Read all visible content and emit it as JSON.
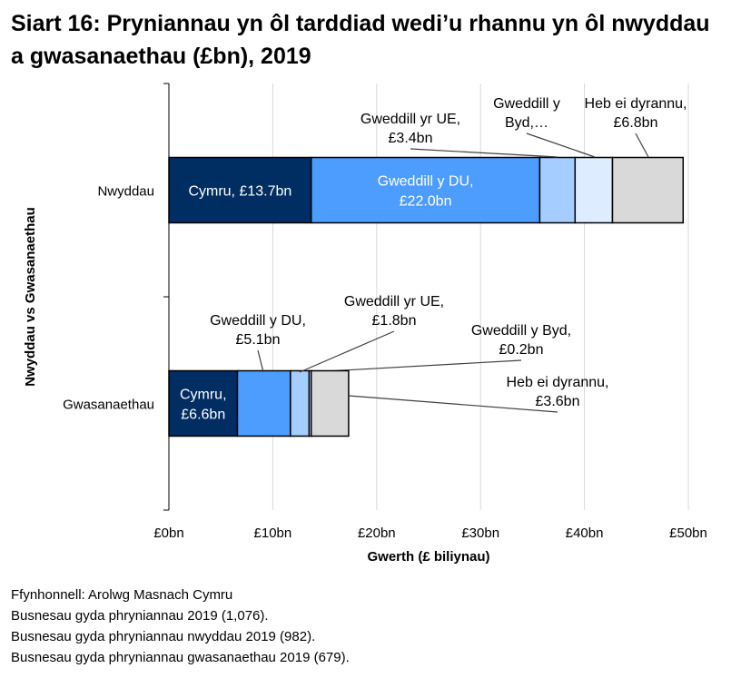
{
  "chart_data": {
    "type": "bar",
    "orientation": "horizontal",
    "stacked": true,
    "title": "Siart 16: Pryniannau yn ôl tarddiad wedi’u rhannu yn ôl nwyddau a gwasanaethau (£bn), 2019",
    "xlabel": "Gwerth (£ biliynau)",
    "ylabel": "Nwyddau vs Gwasanaethau",
    "xlim": [
      0,
      50
    ],
    "xticks": [
      "£0bn",
      "£10bn",
      "£20bn",
      "£30bn",
      "£40bn",
      "£50bn"
    ],
    "xtick_values": [
      0,
      10,
      20,
      30,
      40,
      50
    ],
    "grid": "vertical",
    "categories": [
      "Nwyddau",
      "Gwasanaethau"
    ],
    "series": [
      {
        "name": "Cymru",
        "color": "#002d62",
        "values": [
          13.7,
          6.6
        ]
      },
      {
        "name": "Gweddill y DU",
        "color": "#4d9cff",
        "values": [
          22.0,
          5.1
        ]
      },
      {
        "name": "Gweddill yr UE",
        "color": "#a6cdff",
        "values": [
          3.4,
          1.8
        ]
      },
      {
        "name": "Gweddill y Byd",
        "color": "#ddecff",
        "values": [
          3.6,
          0.2
        ]
      },
      {
        "name": "Heb ei dyrannu",
        "color": "#d9d9d9",
        "values": [
          6.8,
          3.6
        ]
      }
    ],
    "labels": {
      "Nwyddau": [
        "Cymru, £13.7bn",
        "Gweddill y DU, £22.0bn",
        "Gweddill yr UE, £3.4bn",
        "Gweddill y Byd,…",
        "Heb ei dyrannu, £6.8bn"
      ],
      "Gwasanaethau": [
        "Cymru, £6.6bn",
        "Gweddill y DU, £5.1bn",
        "Gweddill yr UE, £1.8bn",
        "Gweddill y Byd, £0.2bn",
        "Heb ei dyrannu, £3.6bn"
      ]
    }
  },
  "notes": [
    "Ffynhonnell: Arolwg Masnach Cymru",
    "Busnesau gyda phryniannau 2019 (1,076).",
    "Busnesau gyda phryniannau nwyddau 2019 (982).",
    "Busnesau gyda phryniannau gwasanaethau 2019 (679)."
  ]
}
